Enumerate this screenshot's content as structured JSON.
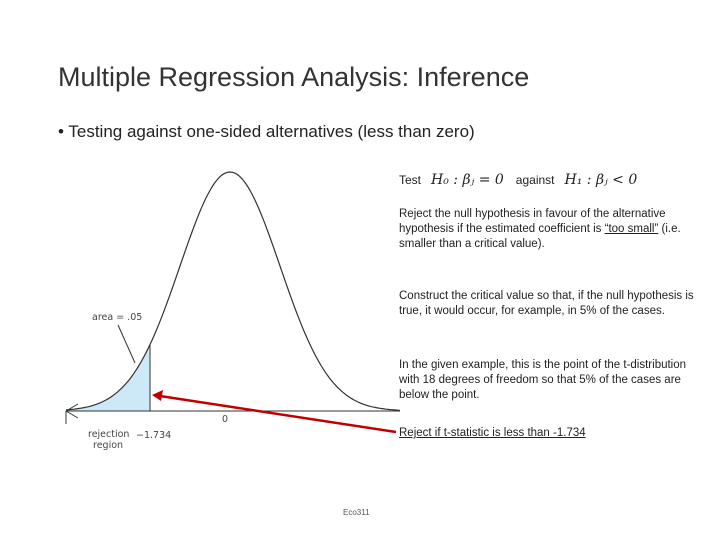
{
  "header": {
    "title": "Multiple Regression Analysis: Inference"
  },
  "bullet": "Testing against one-sided alternatives (less than zero)",
  "test": {
    "word": "Test",
    "h0": "H₀ : βⱼ = 0",
    "against": "against",
    "h1": "H₁ : βⱼ < 0"
  },
  "paragraphs": [
    {
      "before": "Reject the null hypothesis in favour of the alternative hypothesis if the estimated coefficient is ",
      "underlined": "“too small”",
      "after": " (i.e. smaller than a critical value)."
    },
    {
      "text": "Construct the critical value so that, if the null hypothesis is true, it would occur, for example, in 5% of the cases."
    },
    {
      "text": "In the given example, this is the point of the t-distribution with 18 degrees of freedom so that 5% of the cases are below the point."
    },
    {
      "underlined": "Reject if t-statistic is less than -1.734"
    }
  ],
  "figure": {
    "area_label": "area = .05",
    "zero_label": "0",
    "region_label": "rejection region",
    "critical_label": "−1.734"
  },
  "footer": "Eco311"
}
